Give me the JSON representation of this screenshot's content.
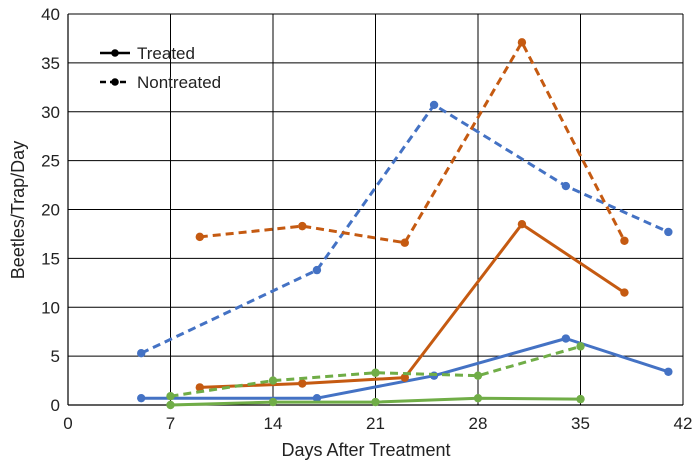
{
  "chart_data": {
    "type": "line",
    "title": "",
    "xlabel": "Days After Treatment",
    "ylabel": "Beetles/Trap/Day",
    "xlim": [
      0,
      42
    ],
    "ylim": [
      0,
      40
    ],
    "xticks": [
      0,
      7,
      14,
      21,
      28,
      35,
      42
    ],
    "yticks": [
      0,
      5,
      10,
      15,
      20,
      25,
      30,
      35,
      40
    ],
    "grid": true,
    "legend": {
      "placement": "top-left",
      "entries": [
        {
          "label": "Treated",
          "style": "solid"
        },
        {
          "label": "Nontreated",
          "style": "dashed"
        }
      ]
    },
    "series": [
      {
        "name": "Blue Treated",
        "color": "#4472C4",
        "style": "solid",
        "x": [
          5,
          17,
          25,
          34,
          41
        ],
        "y": [
          0.7,
          0.7,
          3.0,
          6.8,
          3.4
        ]
      },
      {
        "name": "Blue Nontreated",
        "color": "#4472C4",
        "style": "dashed",
        "x": [
          5,
          17,
          25,
          34,
          41
        ],
        "y": [
          5.3,
          13.8,
          30.7,
          22.4,
          17.7
        ]
      },
      {
        "name": "Orange Treated",
        "color": "#C55A11",
        "style": "solid",
        "x": [
          9,
          16,
          23,
          31,
          38
        ],
        "y": [
          1.8,
          2.2,
          2.8,
          18.5,
          11.5
        ]
      },
      {
        "name": "Orange Nontreated",
        "color": "#C55A11",
        "style": "dashed",
        "x": [
          9,
          16,
          23,
          31,
          38
        ],
        "y": [
          17.2,
          18.3,
          16.6,
          37.1,
          16.8
        ]
      },
      {
        "name": "Green Treated",
        "color": "#70AD47",
        "style": "solid",
        "x": [
          7,
          14,
          21,
          28,
          35
        ],
        "y": [
          0.0,
          0.3,
          0.3,
          0.7,
          0.6
        ]
      },
      {
        "name": "Green Nontreated",
        "color": "#70AD47",
        "style": "dashed",
        "x": [
          7,
          14,
          21,
          28,
          35
        ],
        "y": [
          0.9,
          2.5,
          3.3,
          3.0,
          6.0
        ]
      }
    ]
  }
}
